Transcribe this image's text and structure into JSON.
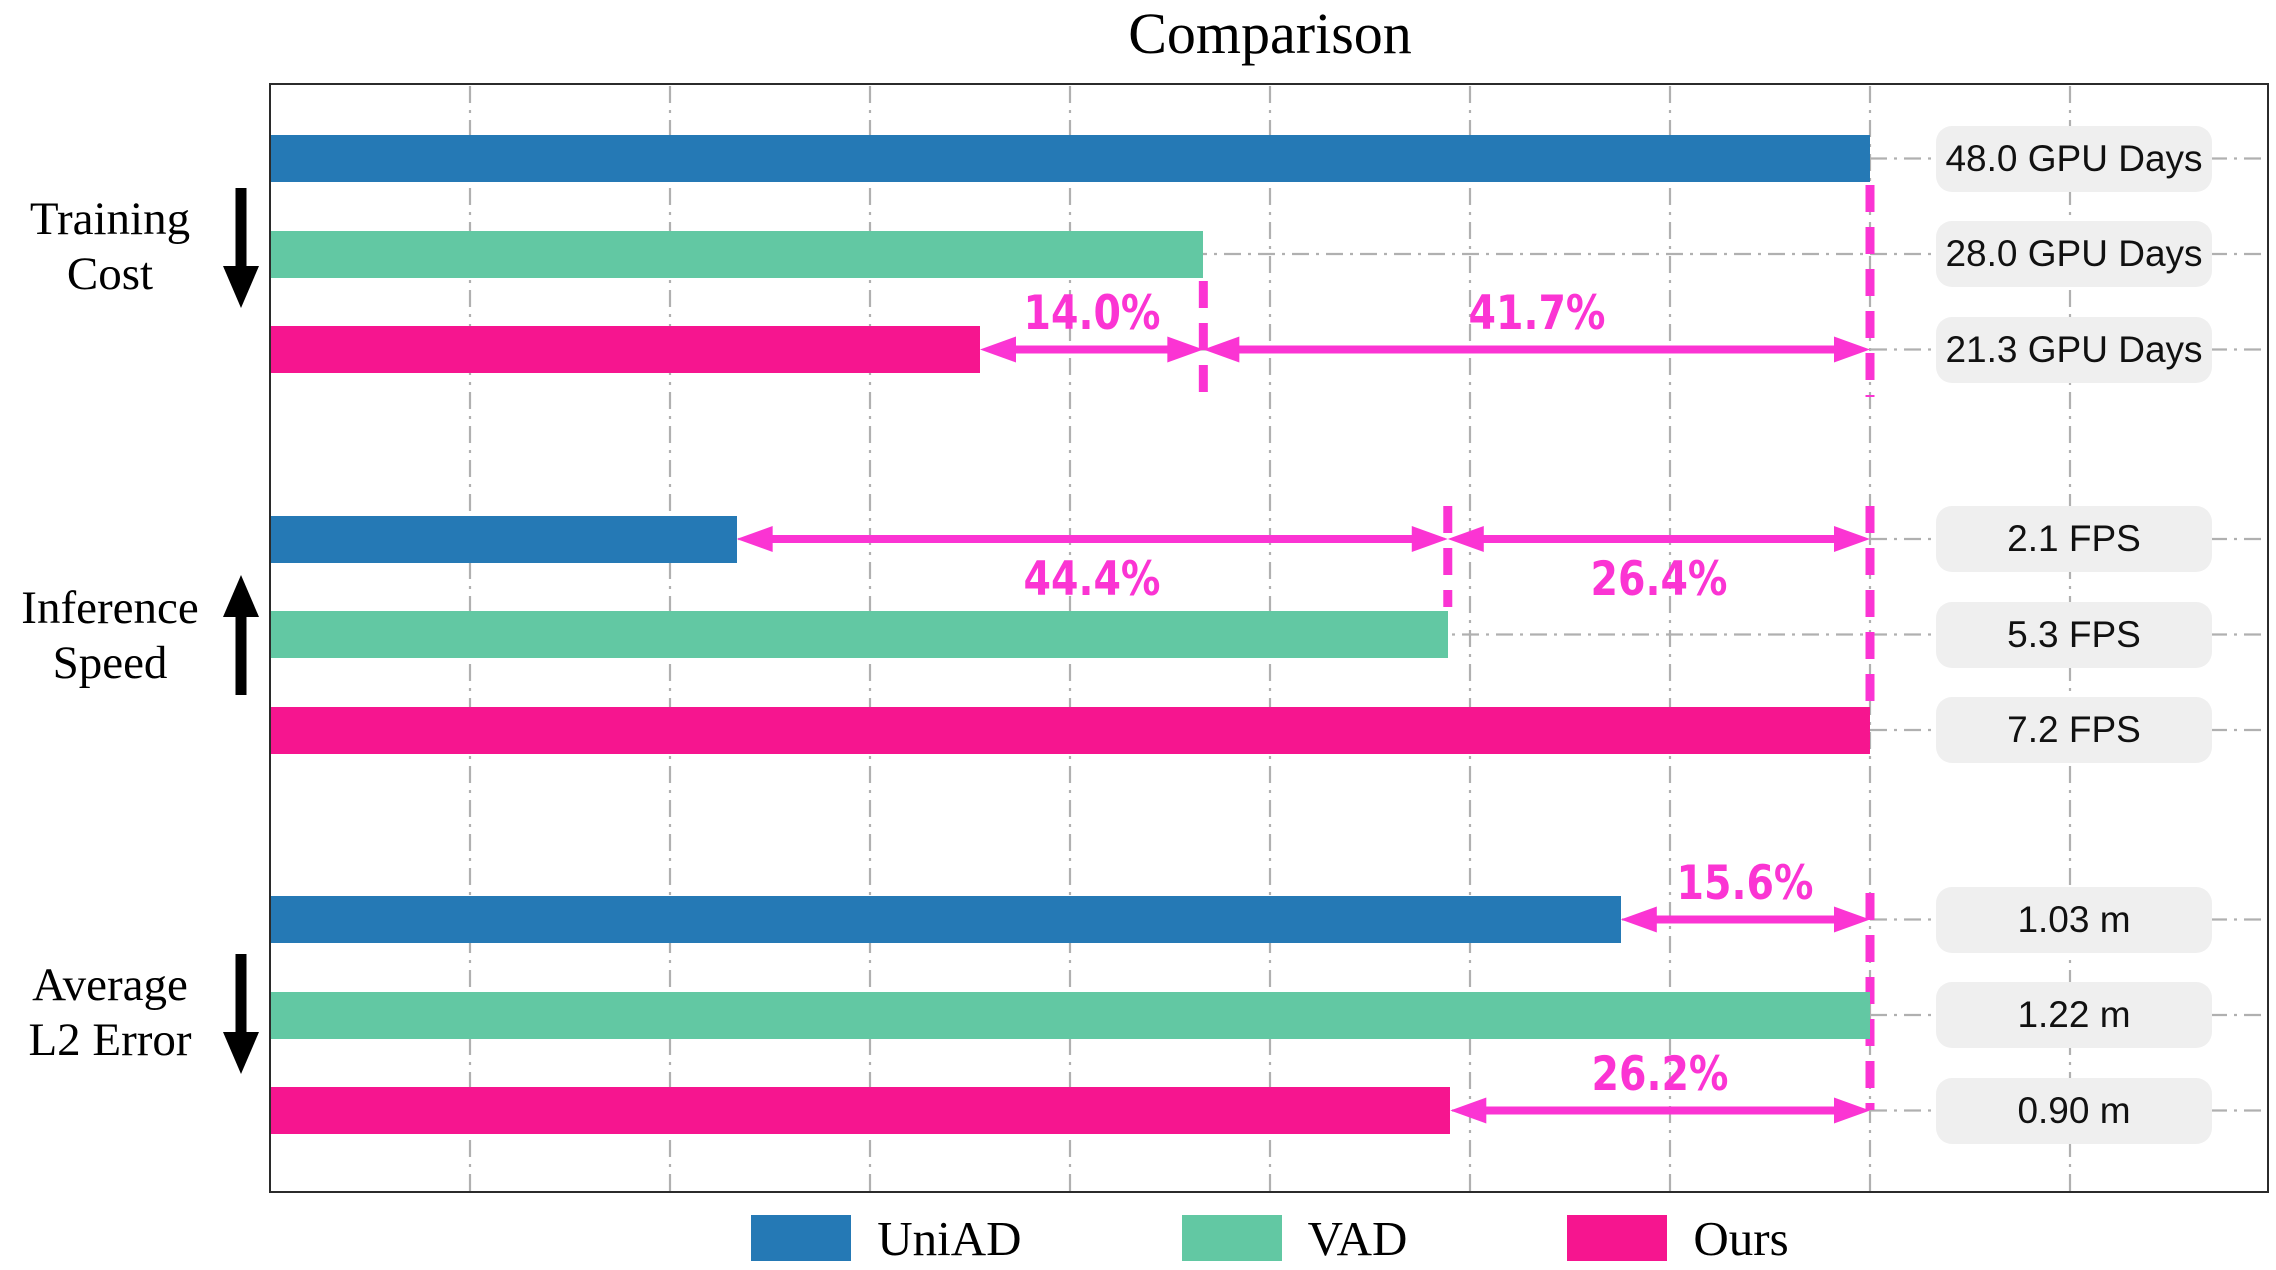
{
  "title": "Comparison",
  "colors": {
    "uniad": "#2579b5",
    "vad": "#62c8a3",
    "ours": "#f6158f",
    "annotation": "#fb34d3",
    "grid": "#b0b0b0",
    "pill_bg": "#efefef",
    "pill_text": "#111111",
    "border": "#2b2b2b"
  },
  "legend": [
    {
      "label": "UniAD",
      "color": "#2579b5"
    },
    {
      "label": "VAD",
      "color": "#62c8a3"
    },
    {
      "label": "Ours",
      "color": "#f6158f"
    }
  ],
  "chart_data": {
    "type": "bar",
    "orientation": "horizontal",
    "note": "each metric group is normalized; the group maximum aligns at the magenta dashed reference line",
    "series_names": [
      "UniAD",
      "VAD",
      "Ours"
    ],
    "sections": [
      {
        "label_lines": [
          "Training",
          "Cost"
        ],
        "direction": "down",
        "unit": "GPU Days",
        "axis_max": 48.0,
        "bars": [
          {
            "series": "UniAD",
            "value": 48.0,
            "label": "48.0 GPU Days"
          },
          {
            "series": "VAD",
            "value": 28.0,
            "label": "28.0 GPU Days"
          },
          {
            "series": "Ours",
            "value": 21.3,
            "label": "21.3 GPU Days"
          }
        ],
        "annotations": [
          {
            "label": "14.0%",
            "from": 21.3,
            "to": 28.0,
            "arrow_row": 2,
            "label_side": "above"
          },
          {
            "label": "41.7%",
            "from": 28.0,
            "to": 48.0,
            "arrow_row": 2,
            "label_side": "above"
          }
        ],
        "ref_values": [
          48.0,
          28.0
        ]
      },
      {
        "label_lines": [
          "Inference",
          "Speed"
        ],
        "direction": "up",
        "unit": "FPS",
        "axis_max": 7.2,
        "bars": [
          {
            "series": "UniAD",
            "value": 2.1,
            "label": "2.1 FPS"
          },
          {
            "series": "VAD",
            "value": 5.3,
            "label": "5.3 FPS"
          },
          {
            "series": "Ours",
            "value": 7.2,
            "label": "7.2 FPS"
          }
        ],
        "annotations": [
          {
            "label": "44.4%",
            "from": 2.1,
            "to": 5.3,
            "arrow_row": 0,
            "label_side": "below"
          },
          {
            "label": "26.4%",
            "from": 5.3,
            "to": 7.2,
            "arrow_row": 0,
            "label_side": "below"
          }
        ],
        "ref_values": [
          5.3,
          7.2
        ]
      },
      {
        "label_lines": [
          "Average",
          "L2 Error"
        ],
        "direction": "down",
        "unit": "m",
        "axis_max": 1.22,
        "bars": [
          {
            "series": "UniAD",
            "value": 1.03,
            "label": "1.03 m"
          },
          {
            "series": "VAD",
            "value": 1.22,
            "label": "1.22 m"
          },
          {
            "series": "Ours",
            "value": 0.9,
            "label": "0.90 m"
          }
        ],
        "annotations": [
          {
            "label": "15.6%",
            "from": 1.03,
            "to": 1.22,
            "arrow_row": 0,
            "label_side": "above"
          },
          {
            "label": "26.2%",
            "from": 0.9,
            "to": 1.22,
            "arrow_row": 2,
            "label_side": "above"
          }
        ],
        "ref_values": [
          1.22
        ]
      }
    ]
  }
}
